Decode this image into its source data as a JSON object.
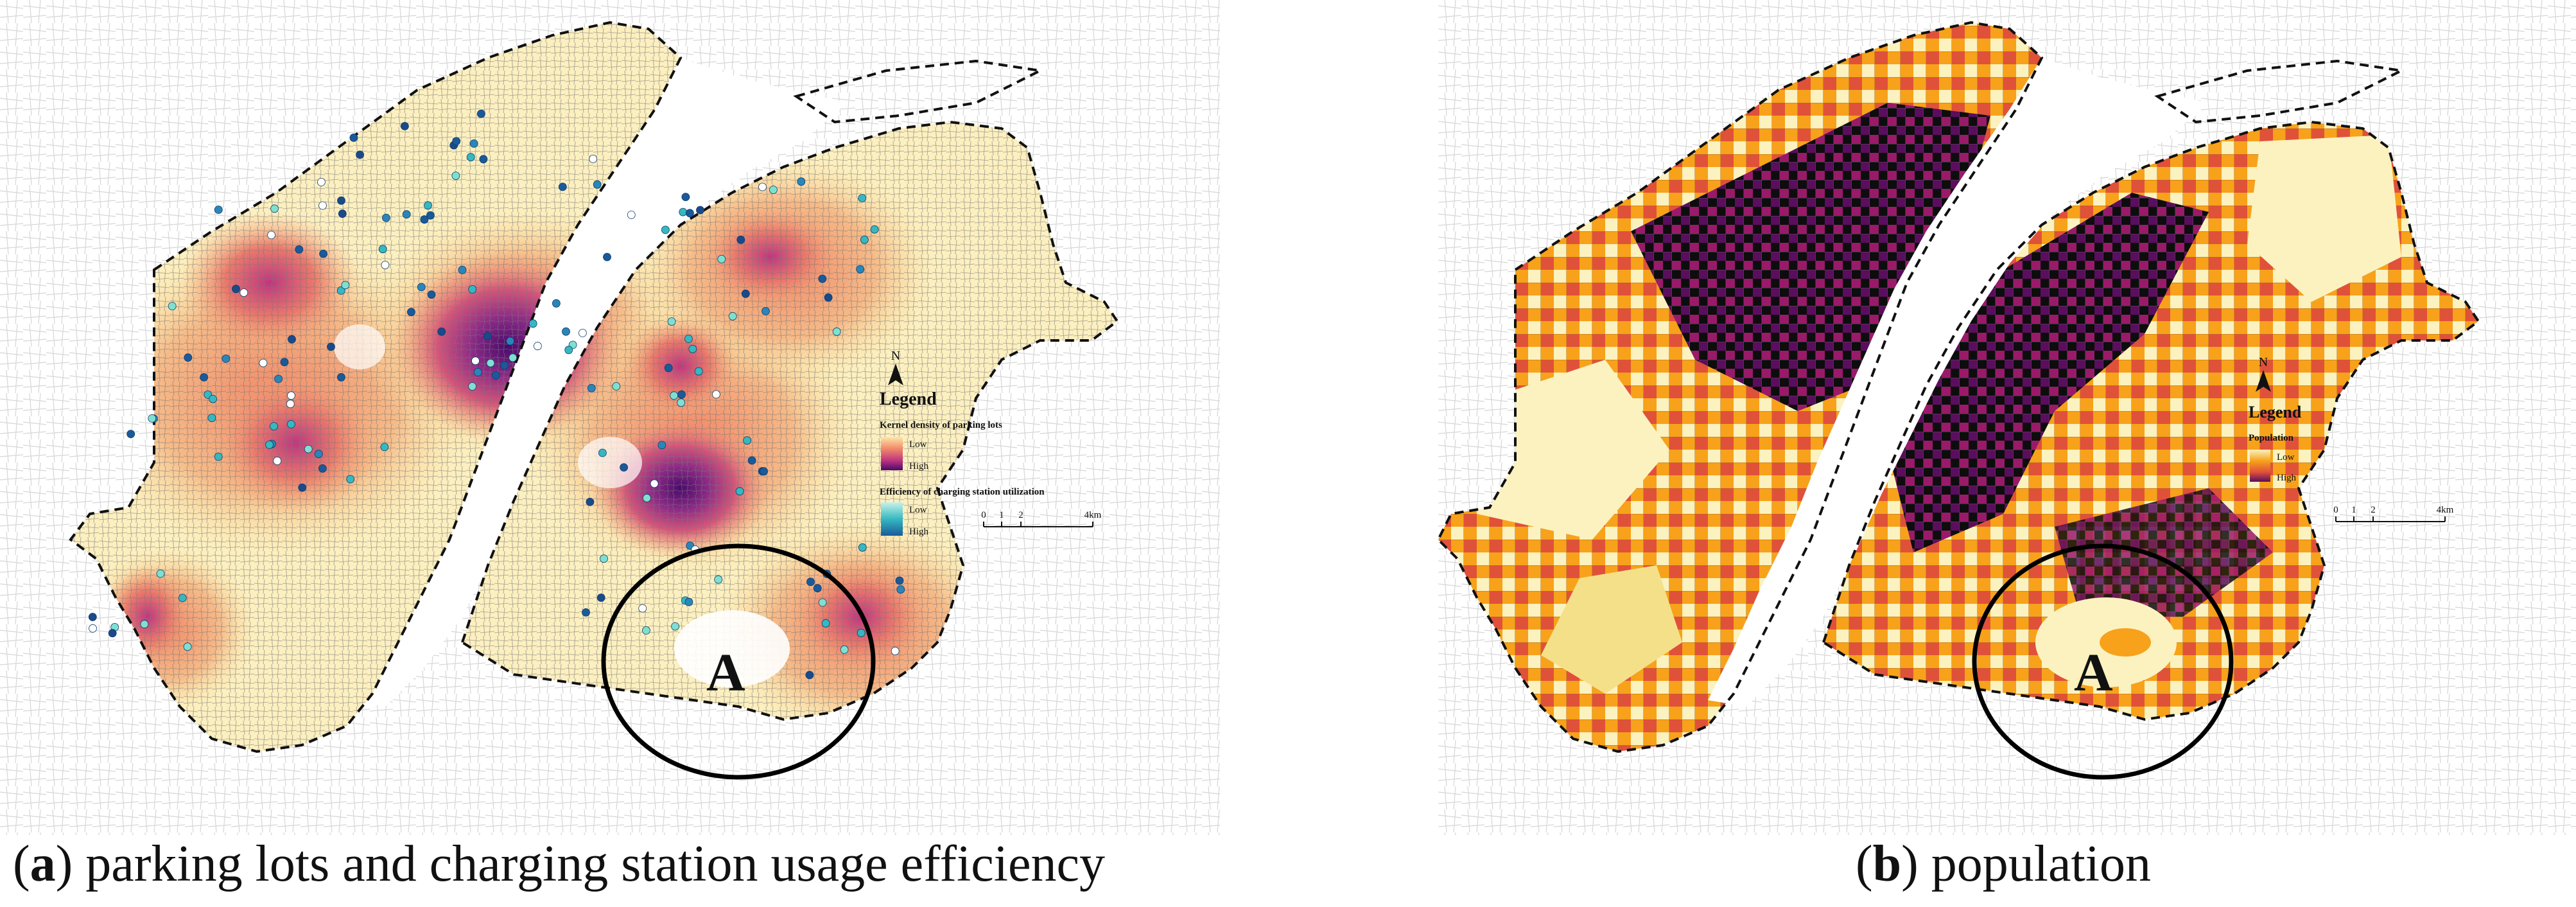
{
  "figure": {
    "panel_a": {
      "caption_letter": "a",
      "caption_text": "parking lots and charging station usage efficiency",
      "north_label": "N",
      "legend_title": "Legend",
      "legend_section1": "Kernel density of parking lots",
      "legend_section1_low": "Low",
      "legend_section1_high": "High",
      "legend_section2": "Efficiency of charging station utilization",
      "legend_section2_low": "Low",
      "legend_section2_high": "High",
      "scale_ticks": [
        "0",
        "1",
        "2",
        "4km"
      ],
      "area_label": "A"
    },
    "panel_b": {
      "caption_letter": "b",
      "caption_text": "population",
      "north_label": "N",
      "legend_title": "Legend",
      "legend_section1": "Population",
      "legend_section1_low": "Low",
      "legend_section1_high": "High",
      "scale_ticks": [
        "0",
        "1",
        "2",
        "4km"
      ],
      "area_label": "A"
    }
  },
  "colors": {
    "density_low": "#fde8a8",
    "density_mid": "#f28a6a",
    "density_high": "#c0367f",
    "density_max": "#4a0a6b",
    "dot_low": "#7fe0d0",
    "dot_high": "#1a5a9a",
    "pop_low": "#fbf2c0",
    "pop_mid": "#f7a21a",
    "pop_high": "#e0513a",
    "pop_max": "#5b0d5e",
    "pop_black": "#0d0d0d"
  }
}
